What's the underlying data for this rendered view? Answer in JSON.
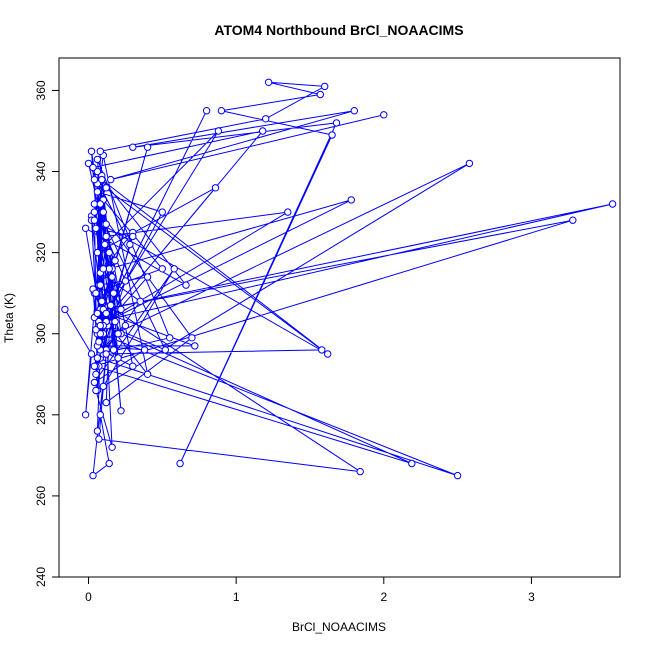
{
  "chart_data": {
    "type": "line",
    "title": "ATOM4 Northbound BrCl_NOAACIMS",
    "xlabel": "BrCl_NOAACIMS",
    "ylabel": "Theta (K)",
    "xlim": [
      -0.2,
      3.6
    ],
    "ylim": [
      240,
      368
    ],
    "xticks": [
      "0",
      "1",
      "2",
      "3"
    ],
    "yticks": [
      "240",
      "260",
      "280",
      "300",
      "320",
      "340",
      "360"
    ],
    "grid": false,
    "color": "#0000ff",
    "marker": "open-circle",
    "series": [
      {
        "x": [
          -0.16,
          0.02,
          -0.02,
          0.1,
          0.05,
          0.3,
          0.08,
          0.35,
          0.12,
          0.02,
          0.06,
          0.4,
          0.07,
          0.22,
          0.1,
          0.5,
          0.04,
          0.13,
          0.28,
          0.0,
          0.25,
          0.08,
          0.55,
          0.06,
          0.15,
          0.18,
          0.03,
          0.07,
          0.11,
          0.2,
          0.09,
          0.17,
          0.05,
          0.3,
          0.1,
          0.06,
          0.08,
          0.16,
          0.12,
          0.7,
          0.04,
          0.2,
          0.14,
          0.05,
          0.08,
          0.18,
          0.02,
          0.12,
          0.06,
          0.22,
          0.1,
          0.04,
          0.16,
          0.08,
          1.18,
          0.03,
          0.66,
          -0.02,
          0.12,
          0.02,
          0.17,
          0.04,
          0.06,
          0.1,
          0.08,
          0.25,
          0.12,
          1.35,
          0.07,
          1.78,
          0.14,
          0.06,
          0.5,
          0.09,
          0.04,
          1.58,
          0.1,
          0.08,
          0.06,
          0.22,
          0.12,
          0.4,
          0.1,
          0.04,
          1.62,
          0.09,
          0.07,
          0.52,
          0.11,
          0.06,
          0.2,
          0.08,
          0.3,
          0.12,
          0.05,
          0.16,
          0.1,
          0.06,
          0.08,
          0.14,
          0.03,
          0.12,
          0.07,
          1.84,
          0.09,
          0.05,
          2.19,
          0.1,
          0.08,
          2.5,
          0.06,
          0.12,
          0.04,
          3.28,
          0.1,
          3.55,
          0.07,
          0.4,
          0.05,
          0.88,
          0.06,
          0.86,
          0.08,
          0.8,
          0.12,
          0.72,
          0.06,
          0.38,
          0.04,
          0.58,
          0.1,
          2.58,
          0.07,
          0.08,
          1.2,
          1.6,
          1.22,
          1.57,
          0.9,
          1.65,
          0.62,
          1.68,
          0.3,
          1.8,
          0.15,
          2.0
        ],
        "y": [
          306,
          295,
          280,
          333,
          290,
          325,
          315,
          308,
          296,
          329,
          300,
          314,
          312,
          300,
          333,
          316,
          310,
          302,
          322,
          342,
          302,
          295,
          299,
          343,
          307,
          303,
          311,
          292,
          322,
          300,
          339,
          296,
          326,
          324,
          300,
          337,
          306,
          316,
          283,
          299,
          332,
          294,
          320,
          310,
          312,
          318,
          328,
          336,
          340,
          281,
          330,
          304,
          314,
          302,
          350,
          341,
          312,
          326,
          296,
          345,
          310,
          330,
          286,
          302,
          294,
          313,
          324,
          330,
          302,
          333,
          316,
          335,
          330,
          302,
          338,
          296,
          295,
          332,
          320,
          306,
          303,
          290,
          344,
          328,
          295,
          338,
          303,
          296,
          327,
          305,
          300,
          296,
          292,
          327,
          286,
          272,
          316,
          276,
          280,
          268,
          265,
          295,
          274,
          266,
          308,
          292,
          268,
          302,
          300,
          265,
          294,
          305,
          292,
          328,
          306,
          332,
          303,
          346,
          301,
          350,
          320,
          336,
          302,
          355,
          305,
          297,
          297,
          296,
          288,
          316,
          287,
          342,
          298,
          345,
          353,
          361,
          362,
          359,
          355,
          349,
          268,
          352,
          346,
          355,
          338,
          354
        ]
      }
    ]
  }
}
